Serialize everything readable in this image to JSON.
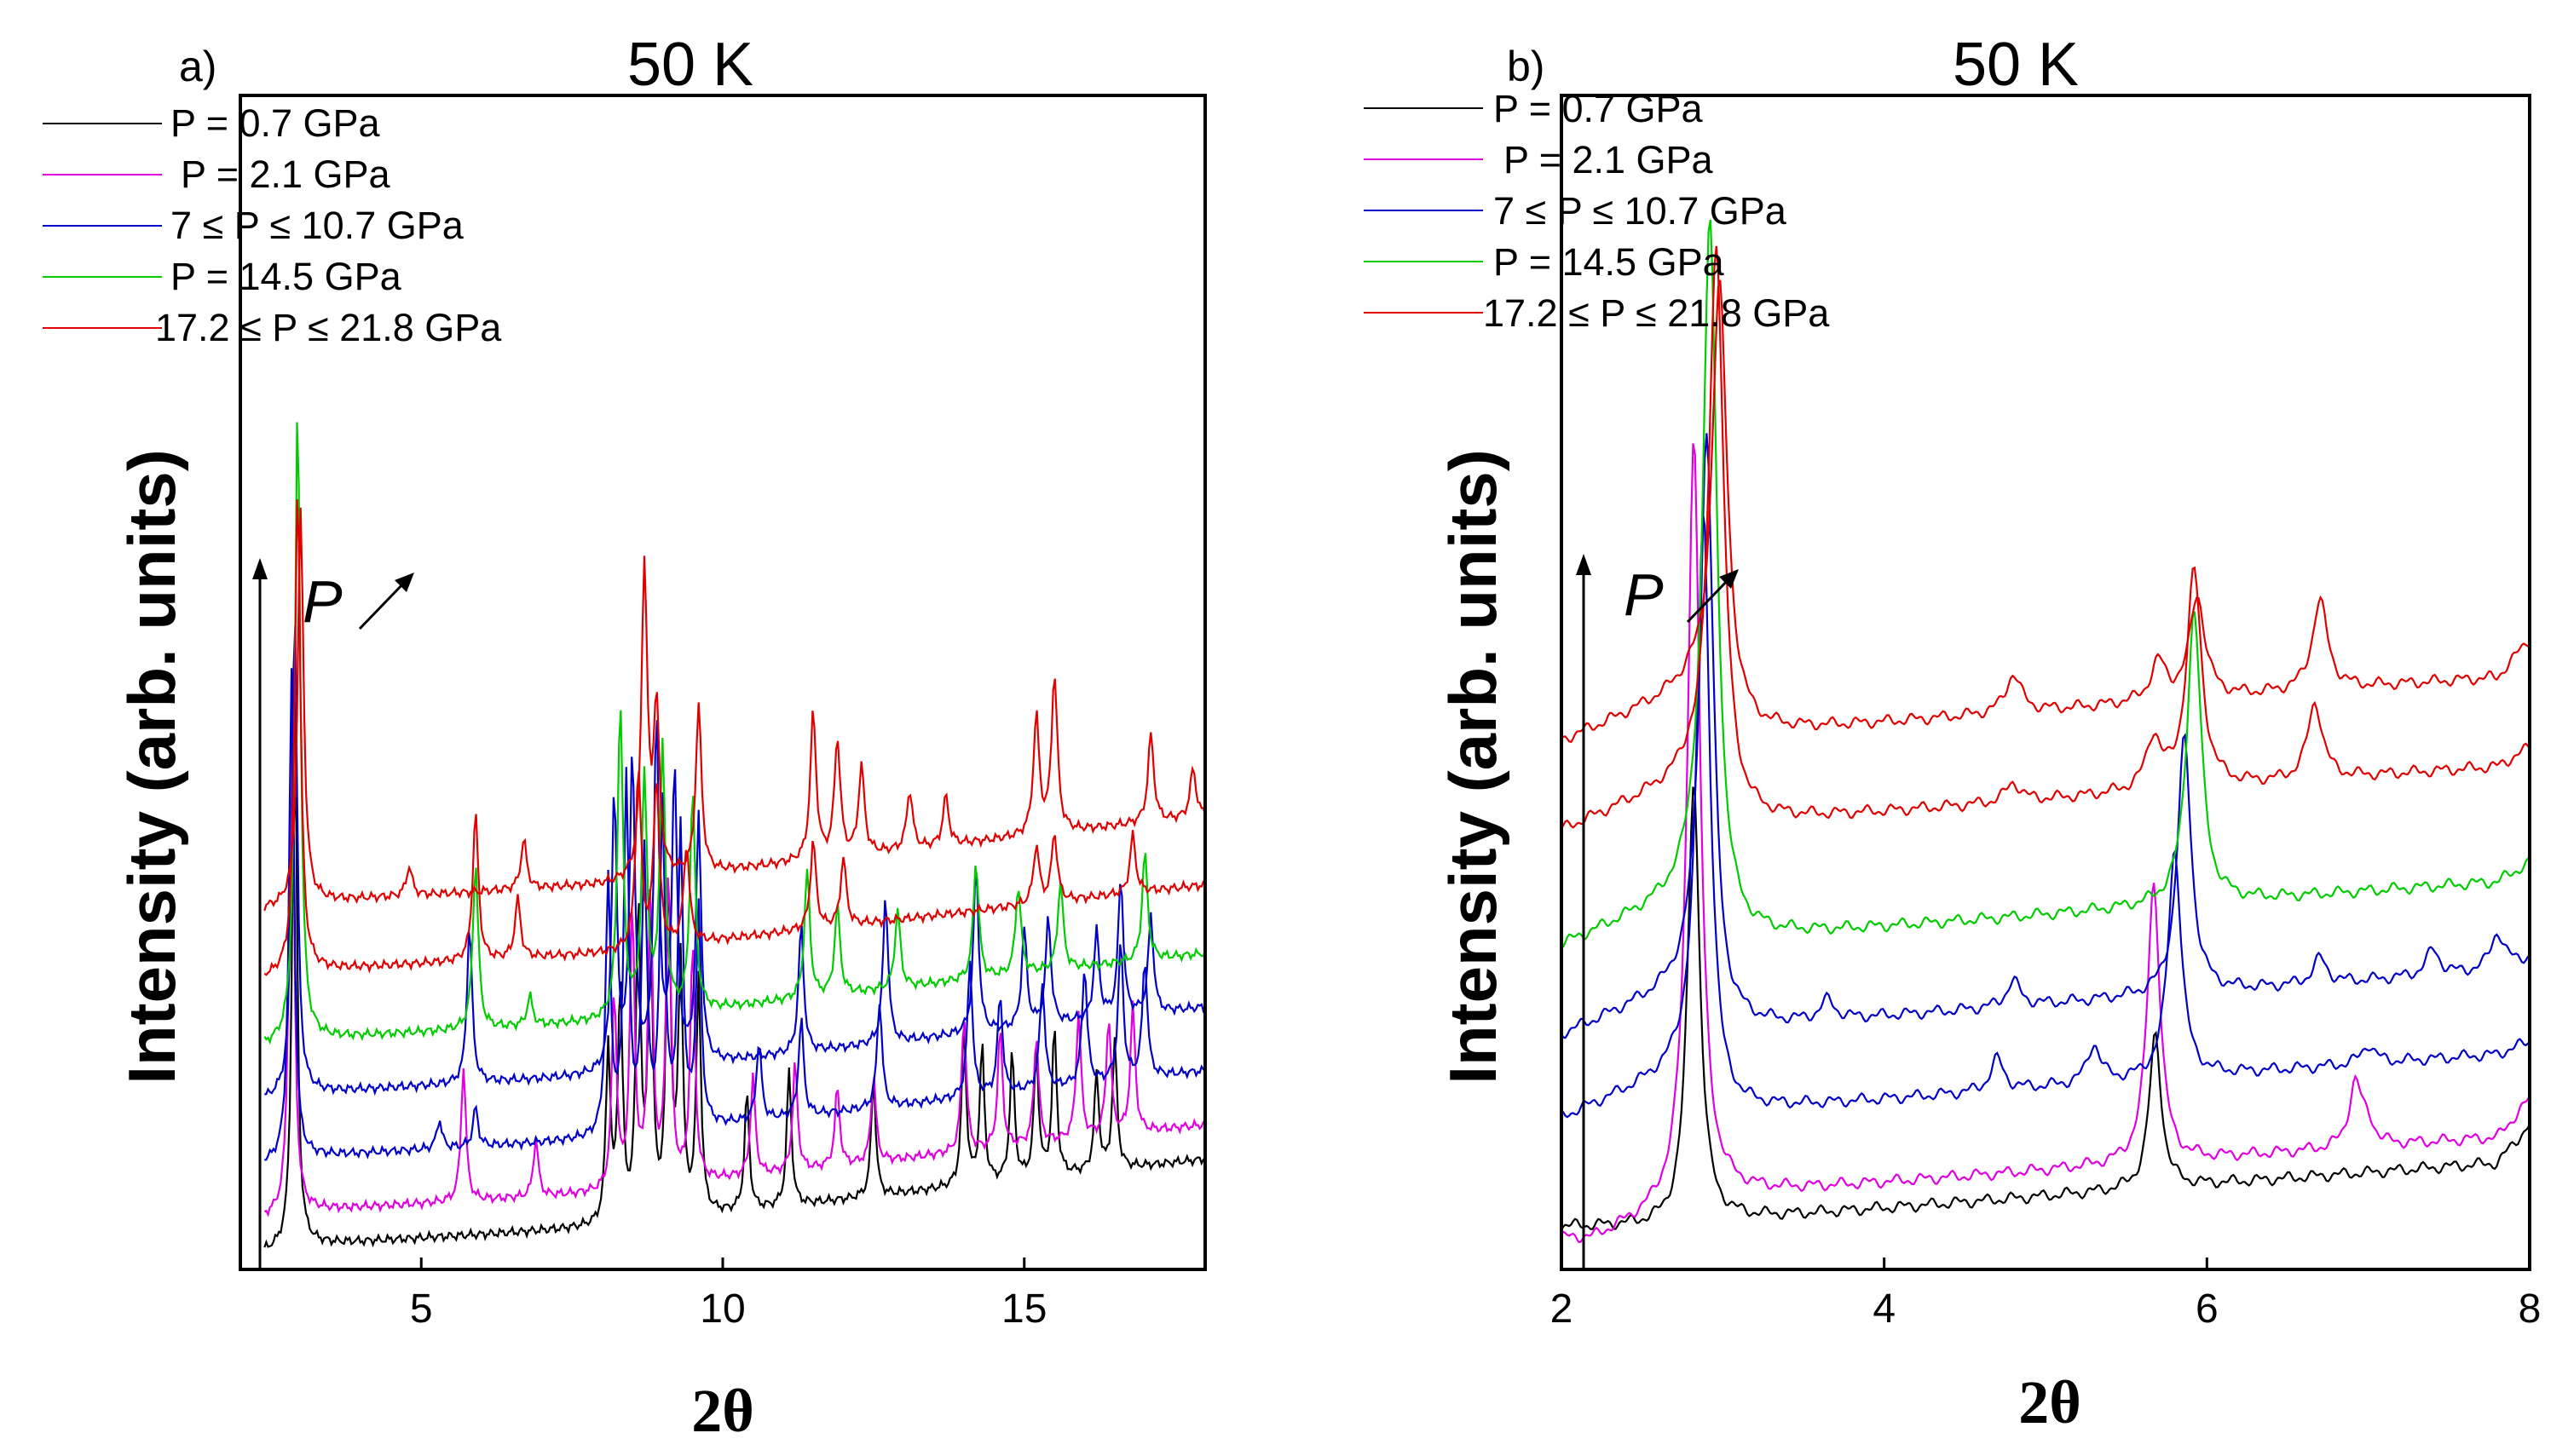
{
  "chart_data": [
    {
      "type": "line",
      "panel_label": "a)",
      "title": "50 K",
      "xlabel": "2θ",
      "ylabel": "Intensity (arb. units)",
      "xlim": [
        2,
        18
      ],
      "x_ticks": [
        5,
        10,
        15
      ],
      "y_ticks": [],
      "pressure_arrow_label": "P",
      "legend": [
        {
          "label": "P = 0.7 GPa",
          "color": "#000000"
        },
        {
          "label": "P = 2.1 GPa",
          "color": "#e000e0"
        },
        {
          "label": "7 ≤ P ≤  10.7 GPa",
          "color": "#0000c8"
        },
        {
          "label": "P =  14.5 GPa",
          "color": "#00cc00"
        },
        {
          "label": "17.2 ≤ P ≤  21.8 GPa",
          "color": "#e00000"
        }
      ],
      "series": [
        {
          "name": "P = 0.7 GPa",
          "color": "#000000",
          "offset": 0.0,
          "baseline": [
            [
              2.4,
              0.0
            ],
            [
              3.2,
              0.08
            ],
            [
              8,
              0.25
            ],
            [
              18,
              0.95
            ]
          ],
          "peaks": [
            [
              2.9,
              6.0
            ],
            [
              8.1,
              1.8
            ],
            [
              8.3,
              2.4
            ],
            [
              8.6,
              3.2
            ],
            [
              8.8,
              3.0
            ],
            [
              9.1,
              3.4
            ],
            [
              9.3,
              2.6
            ],
            [
              9.6,
              2.4
            ],
            [
              10.4,
              1.2
            ],
            [
              11.1,
              1.4
            ],
            [
              12.5,
              1.2
            ],
            [
              14.0,
              1.6
            ],
            [
              14.3,
              1.4
            ],
            [
              14.8,
              1.3
            ],
            [
              15.2,
              1.3
            ],
            [
              15.5,
              1.5
            ],
            [
              16.2,
              1.0
            ],
            [
              16.5,
              1.3
            ]
          ]
        },
        {
          "name": "P = 2.1 GPa",
          "color": "#e000e0",
          "offset": 0.35,
          "baseline": [
            [
              2.4,
              0.0
            ],
            [
              3.2,
              0.08
            ],
            [
              8,
              0.25
            ],
            [
              18,
              0.95
            ]
          ],
          "peaks": [
            [
              2.85,
              5.5
            ],
            [
              5.7,
              1.4
            ],
            [
              6.9,
              0.6
            ],
            [
              8.2,
              2.0
            ],
            [
              8.5,
              2.8
            ],
            [
              8.8,
              3.0
            ],
            [
              9.1,
              3.2
            ],
            [
              9.5,
              2.4
            ],
            [
              10.5,
              1.0
            ],
            [
              11.2,
              1.1
            ],
            [
              11.9,
              0.8
            ],
            [
              12.5,
              0.9
            ],
            [
              14.0,
              1.4
            ],
            [
              14.6,
              1.2
            ],
            [
              15.2,
              1.1
            ],
            [
              15.9,
              1.3
            ],
            [
              16.4,
              1.2
            ],
            [
              16.8,
              1.3
            ]
          ]
        },
        {
          "name": "7 ≤ P ≤  10.7 GPa",
          "color": "#0000c8",
          "offset": 0.9,
          "baseline": [
            [
              2.4,
              0.0
            ],
            [
              3.2,
              0.08
            ],
            [
              8,
              0.25
            ],
            [
              18,
              0.95
            ]
          ],
          "peaks": [
            [
              2.85,
              5.0
            ],
            [
              5.3,
              0.3
            ],
            [
              5.9,
              0.4
            ],
            [
              8.1,
              2.6
            ],
            [
              8.4,
              3.6
            ],
            [
              8.7,
              2.8
            ],
            [
              9.0,
              3.3
            ],
            [
              9.3,
              3.0
            ],
            [
              9.6,
              2.2
            ],
            [
              10.6,
              0.8
            ],
            [
              11.3,
              1.0
            ],
            [
              12.6,
              1.1
            ],
            [
              14.1,
              1.4
            ],
            [
              14.6,
              1.0
            ],
            [
              15.3,
              1.1
            ],
            [
              16.0,
              1.2
            ],
            [
              16.6,
              1.4
            ],
            [
              17.0,
              1.2
            ]
          ]
        },
        {
          "name": "7 ≤ P ≤  10.7 GPa",
          "color": "#0000c8",
          "offset": 1.55,
          "baseline": [
            [
              2.4,
              0.0
            ],
            [
              3.2,
              0.08
            ],
            [
              8,
              0.25
            ],
            [
              18,
              0.95
            ]
          ],
          "peaks": [
            [
              2.9,
              5.0
            ],
            [
              5.8,
              1.6
            ],
            [
              8.2,
              2.8
            ],
            [
              8.5,
              3.2
            ],
            [
              8.9,
              3.5
            ],
            [
              9.2,
              3.0
            ],
            [
              9.6,
              2.5
            ],
            [
              11.3,
              1.3
            ],
            [
              12.7,
              1.5
            ],
            [
              14.2,
              1.7
            ],
            [
              15.0,
              1.0
            ],
            [
              15.4,
              1.1
            ],
            [
              16.2,
              0.9
            ],
            [
              16.6,
              1.4
            ],
            [
              17.1,
              1.0
            ]
          ]
        },
        {
          "name": "P =  14.5 GPa",
          "color": "#00cc00",
          "offset": 2.1,
          "baseline": [
            [
              2.4,
              0.0
            ],
            [
              3.2,
              0.08
            ],
            [
              8,
              0.25
            ],
            [
              18,
              0.95
            ]
          ],
          "peaks": [
            [
              2.95,
              6.5
            ],
            [
              5.9,
              1.7
            ],
            [
              6.8,
              0.3
            ],
            [
              8.3,
              3.2
            ],
            [
              8.7,
              2.4
            ],
            [
              9.0,
              2.7
            ],
            [
              9.5,
              2.2
            ],
            [
              11.4,
              1.3
            ],
            [
              11.9,
              0.9
            ],
            [
              12.9,
              0.8
            ],
            [
              14.2,
              1.2
            ],
            [
              14.9,
              0.9
            ],
            [
              15.6,
              0.9
            ],
            [
              17.0,
              1.1
            ]
          ]
        },
        {
          "name": "17.2 ≤ P ≤  21.8 GPa",
          "color": "#e00000",
          "offset": 2.8,
          "baseline": [
            [
              2.4,
              0.0
            ],
            [
              3.2,
              0.08
            ],
            [
              8,
              0.25
            ],
            [
              18,
              0.95
            ]
          ],
          "peaks": [
            [
              2.95,
              5.0
            ],
            [
              5.9,
              1.5
            ],
            [
              6.6,
              0.6
            ],
            [
              8.6,
              1.8
            ],
            [
              8.9,
              1.7
            ],
            [
              9.4,
              1.0
            ],
            [
              11.5,
              0.9
            ],
            [
              12.0,
              0.7
            ],
            [
              15.2,
              0.6
            ],
            [
              15.5,
              0.7
            ],
            [
              16.8,
              0.6
            ]
          ]
        },
        {
          "name": "17.2 ≤ P ≤  21.8 GPa",
          "color": "#e00000",
          "offset": 3.5,
          "baseline": [
            [
              2.4,
              0.0
            ],
            [
              3.2,
              0.08
            ],
            [
              8,
              0.25
            ],
            [
              18,
              0.95
            ]
          ],
          "peaks": [
            [
              3.0,
              4.0
            ],
            [
              4.8,
              0.3
            ],
            [
              6.7,
              0.5
            ],
            [
              8.7,
              3.2
            ],
            [
              8.9,
              1.7
            ],
            [
              9.6,
              1.7
            ],
            [
              11.5,
              1.5
            ],
            [
              11.9,
              1.2
            ],
            [
              12.3,
              0.9
            ],
            [
              13.1,
              0.6
            ],
            [
              13.7,
              0.5
            ],
            [
              15.2,
              1.2
            ],
            [
              15.5,
              1.6
            ],
            [
              17.1,
              0.9
            ],
            [
              17.8,
              0.5
            ]
          ]
        }
      ]
    },
    {
      "type": "line",
      "panel_label": "b)",
      "title": "50 K",
      "xlabel": "2θ",
      "ylabel": "Intensity (arb. units)",
      "xlim": [
        2,
        8
      ],
      "x_ticks": [
        2,
        4,
        6,
        8
      ],
      "y_ticks": [],
      "pressure_arrow_label": "P",
      "legend": [
        {
          "label": "P = 0.7 GPa",
          "color": "#000000"
        },
        {
          "label": "P = 2.1 GPa",
          "color": "#e000e0"
        },
        {
          "label": "7 ≤ P ≤  10.7 GPa",
          "color": "#0000c8"
        },
        {
          "label": "P =  14.5 GPa",
          "color": "#00cc00"
        },
        {
          "label": "17.2 ≤ P ≤  21.8 GPa",
          "color": "#e00000"
        }
      ],
      "series": [
        {
          "name": "P = 0.7 GPa",
          "color": "#000000",
          "offset": 0.0,
          "baseline": [
            [
              2.8,
              0.0
            ],
            [
              3.0,
              0.05
            ],
            [
              7.8,
              0.5
            ],
            [
              8.0,
              0.8
            ]
          ],
          "peaks": [
            [
              2.82,
              3.5
            ],
            [
              5.68,
              1.2
            ]
          ]
        },
        {
          "name": "P = 2.1 GPa",
          "color": "#e000e0",
          "offset": 0.2,
          "baseline": [
            [
              2.2,
              -0.3
            ],
            [
              2.8,
              0.0
            ],
            [
              3.0,
              0.05
            ],
            [
              7.8,
              0.5
            ],
            [
              8.0,
              0.8
            ]
          ],
          "peaks": [
            [
              2.82,
              6.0
            ],
            [
              5.67,
              2.2
            ],
            [
              6.92,
              0.5
            ],
            [
              7.0,
              0.15
            ]
          ]
        },
        {
          "name": "7 ≤ P ≤  10.7 GPa",
          "color": "#0000c8",
          "offset": 0.85,
          "baseline": [
            [
              2.0,
              0.0
            ],
            [
              2.8,
              0.4
            ],
            [
              3.0,
              0.05
            ],
            [
              7.8,
              0.5
            ],
            [
              8.0,
              0.6
            ]
          ],
          "peaks": [
            [
              2.88,
              4.5
            ],
            [
              4.7,
              0.25
            ],
            [
              5.3,
              0.3
            ],
            [
              5.8,
              1.8
            ],
            [
              7.0,
              0.15
            ]
          ]
        },
        {
          "name": "7 ≤ P ≤  10.7 GPa",
          "color": "#0000c8",
          "offset": 1.5,
          "baseline": [
            [
              2.0,
              0.0
            ],
            [
              2.8,
              0.4
            ],
            [
              3.0,
              0.05
            ],
            [
              7.8,
              0.5
            ],
            [
              8.0,
              0.6
            ]
          ],
          "peaks": [
            [
              2.9,
              4.5
            ],
            [
              3.65,
              0.15
            ],
            [
              4.8,
              0.2
            ],
            [
              5.86,
              2.0
            ],
            [
              6.7,
              0.2
            ],
            [
              7.4,
              0.2
            ],
            [
              7.8,
              0.3
            ]
          ]
        },
        {
          "name": "P =  14.5 GPa",
          "color": "#00cc00",
          "offset": 2.2,
          "baseline": [
            [
              2.0,
              0.0
            ],
            [
              2.8,
              0.4
            ],
            [
              3.0,
              0.05
            ],
            [
              7.8,
              0.5
            ],
            [
              8.0,
              0.65
            ]
          ],
          "peaks": [
            [
              2.92,
              5.5
            ],
            [
              5.92,
              2.3
            ]
          ]
        },
        {
          "name": "17.2 ≤ P ≤  21.8 GPa",
          "color": "#e00000",
          "offset": 3.1,
          "baseline": [
            [
              2.0,
              0.0
            ],
            [
              2.8,
              0.4
            ],
            [
              3.0,
              0.05
            ],
            [
              7.8,
              0.5
            ],
            [
              8.0,
              0.65
            ]
          ],
          "peaks": [
            [
              2.96,
              4.5
            ],
            [
              4.8,
              0.15
            ],
            [
              5.67,
              0.4
            ],
            [
              5.92,
              1.7
            ],
            [
              6.67,
              0.6
            ]
          ]
        },
        {
          "name": "17.2 ≤ P ≤  21.8 GPa",
          "color": "#e00000",
          "offset": 3.8,
          "baseline": [
            [
              2.0,
              0.0
            ],
            [
              2.8,
              0.4
            ],
            [
              3.0,
              0.05
            ],
            [
              7.8,
              0.5
            ],
            [
              8.0,
              0.8
            ]
          ],
          "peaks": [
            [
              2.98,
              3.5
            ],
            [
              4.8,
              0.3
            ],
            [
              5.7,
              0.3
            ],
            [
              5.94,
              0.8
            ],
            [
              6.7,
              0.7
            ]
          ]
        }
      ]
    }
  ]
}
